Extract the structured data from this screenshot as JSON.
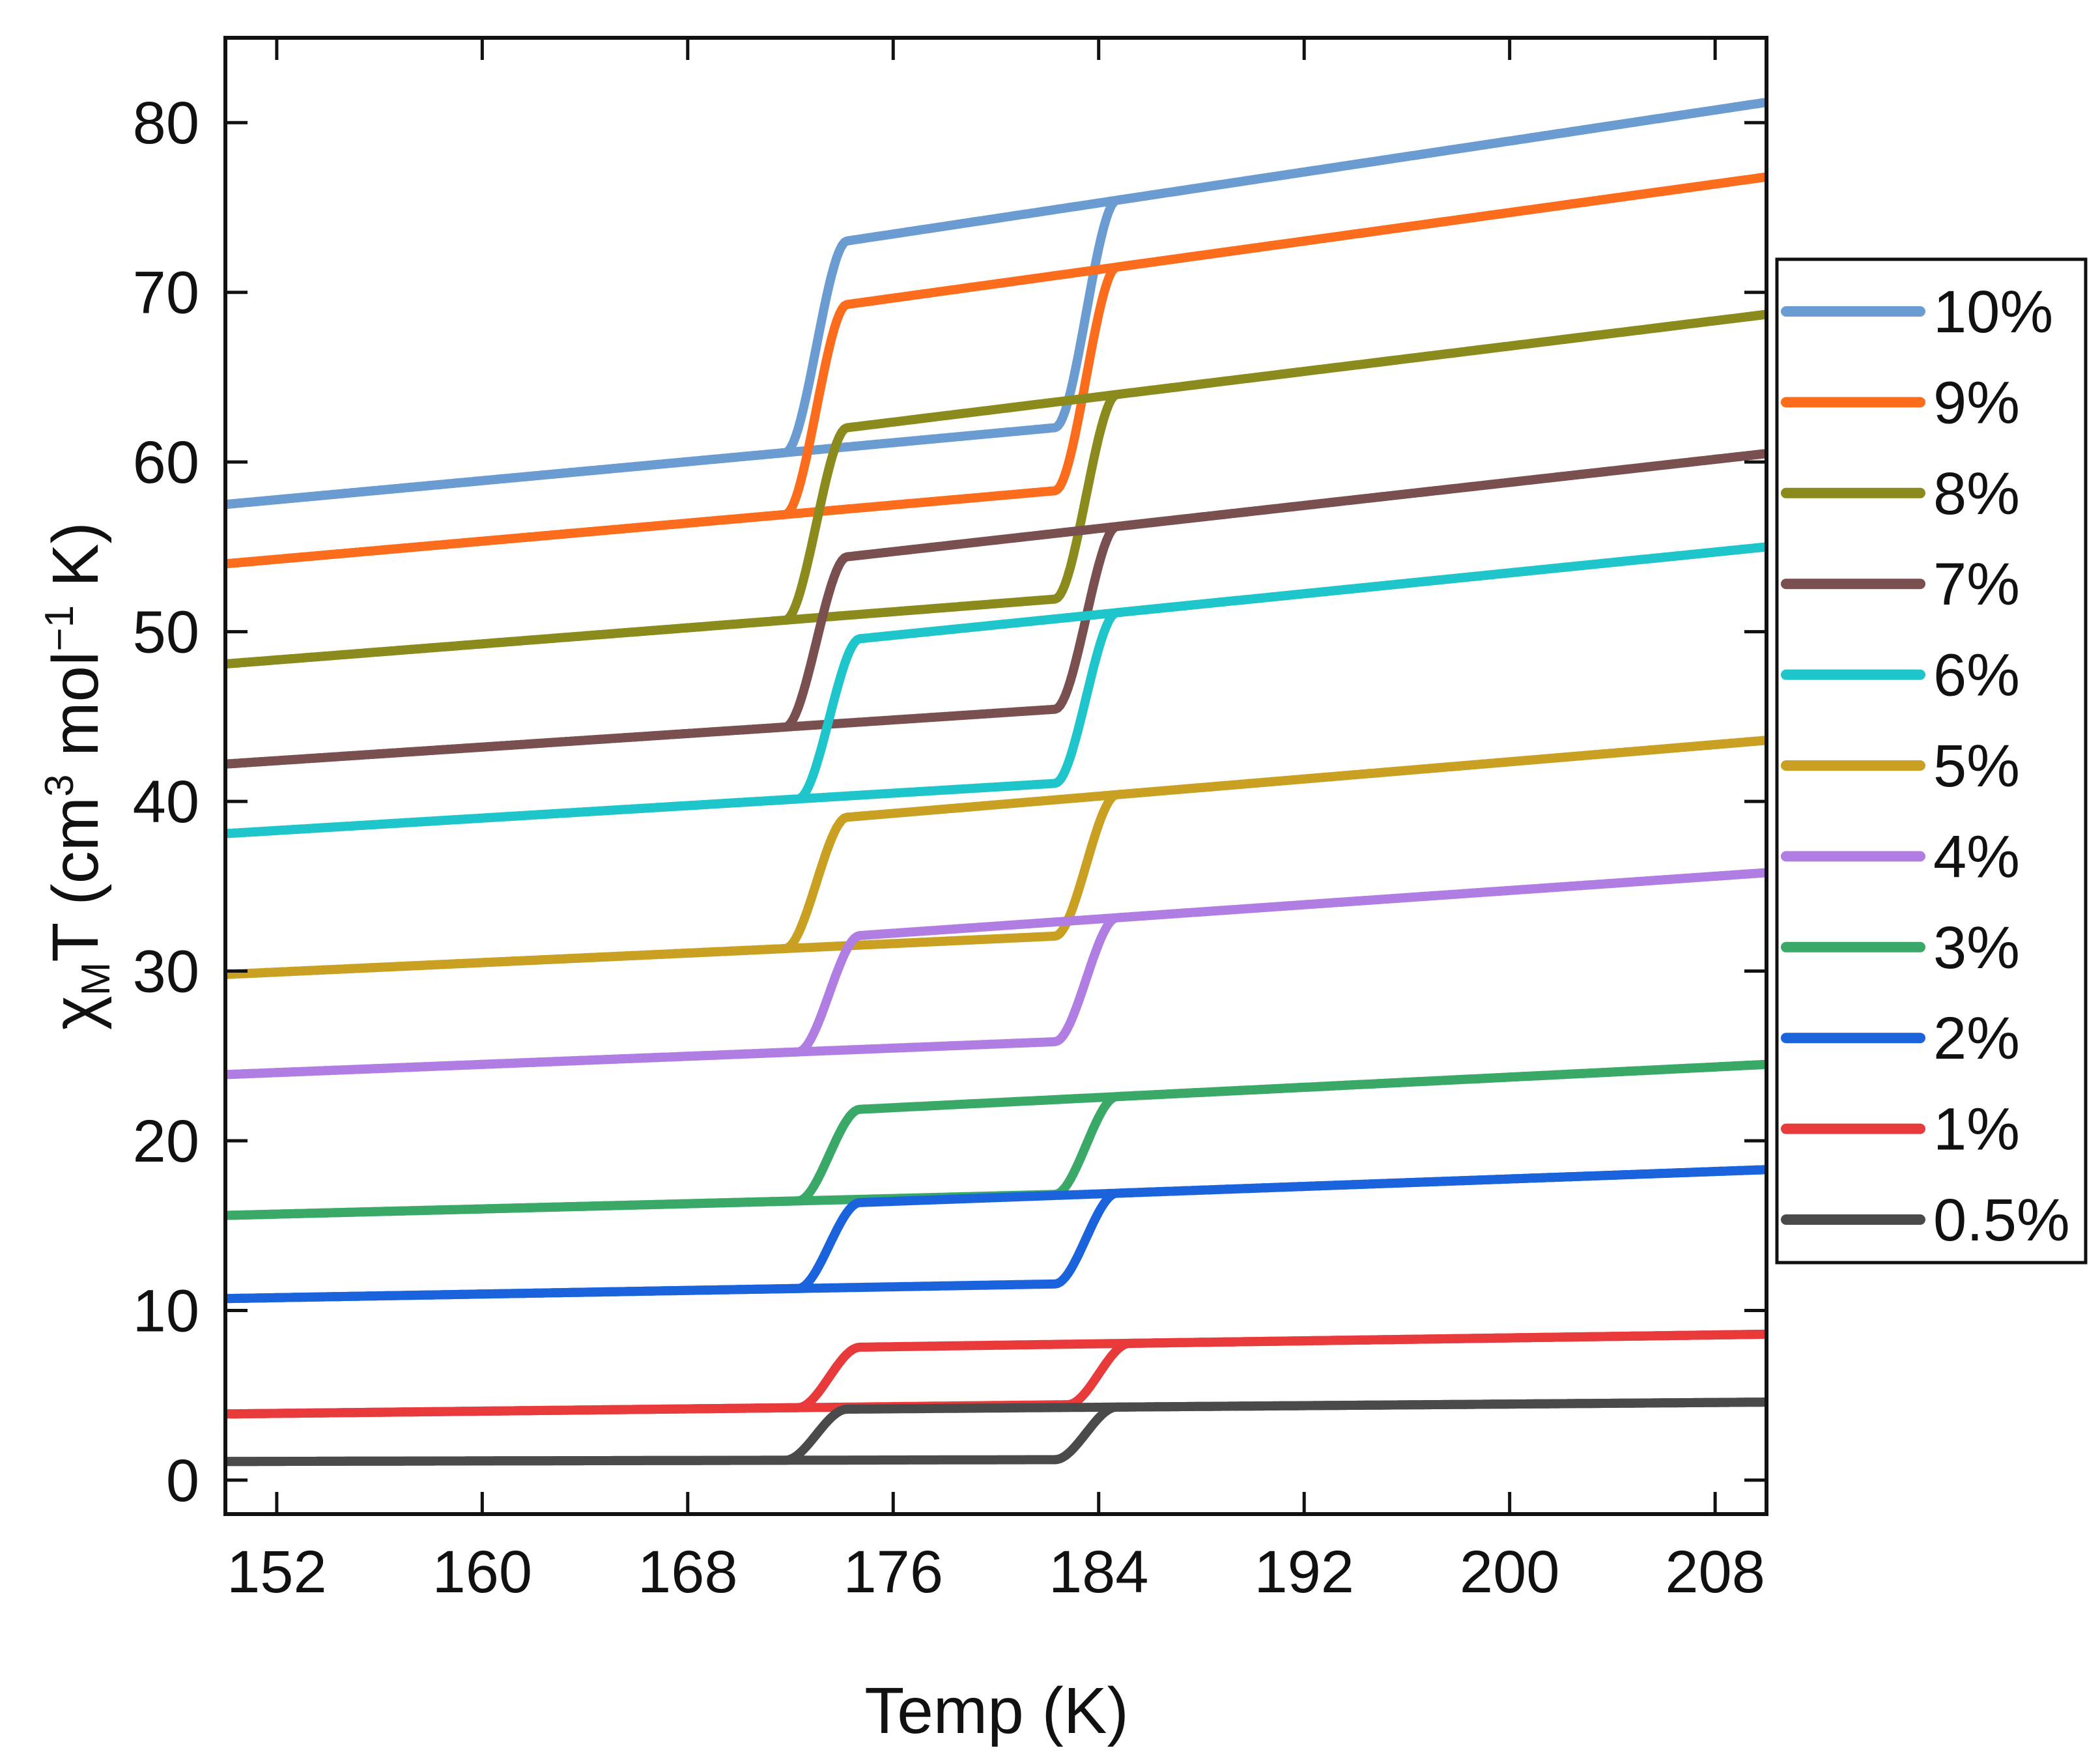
{
  "chart_data": {
    "type": "line",
    "title": "",
    "xlabel": "Temp (K)",
    "ylabel": {
      "chi": "χ",
      "sub": "M",
      "mid": "T (cm",
      "sup1": "3",
      "mid2": " mol",
      "sup2": "−1",
      "end": " K)"
    },
    "xlim": [
      150,
      210
    ],
    "ylim": [
      -2,
      85
    ],
    "xticks": [
      152,
      160,
      168,
      176,
      184,
      192,
      200,
      208
    ],
    "yticks": [
      0,
      10,
      20,
      30,
      40,
      50,
      60,
      70,
      80
    ],
    "legend_position": "right",
    "series": [
      {
        "name": "10%",
        "color": "#6a9bd1",
        "low": [
          57.5,
          65.9
        ],
        "high": [
          67.5,
          81.2
        ],
        "x_heat": 183.5,
        "x_cool": 173.0
      },
      {
        "name": "9%",
        "color": "#fb6d1d",
        "low": [
          54.0,
          62.0
        ],
        "high": [
          64.2,
          76.8
        ],
        "x_heat": 183.5,
        "x_cool": 173.0
      },
      {
        "name": "8%",
        "color": "#8b8a1c",
        "low": [
          48.1,
          55.2
        ],
        "high": [
          57.5,
          68.7
        ],
        "x_heat": 183.5,
        "x_cool": 173.0
      },
      {
        "name": "7%",
        "color": "#7a4f4f",
        "low": [
          42.2,
          48.2
        ],
        "high": [
          50.3,
          60.5
        ],
        "x_heat": 183.5,
        "x_cool": 173.0
      },
      {
        "name": "6%",
        "color": "#1ec6cc",
        "low": [
          38.1,
          43.6
        ],
        "high": [
          45.8,
          55.0
        ],
        "x_heat": 183.5,
        "x_cool": 173.5
      },
      {
        "name": "5%",
        "color": "#c9a021",
        "low": [
          29.8,
          34.0
        ],
        "high": [
          36.0,
          43.6
        ],
        "x_heat": 183.5,
        "x_cool": 173.0
      },
      {
        "name": "4%",
        "color": "#b07ee3",
        "low": [
          23.9,
          27.5
        ],
        "high": [
          29.5,
          35.8
        ],
        "x_heat": 183.5,
        "x_cool": 173.5
      },
      {
        "name": "3%",
        "color": "#3aa867",
        "low": [
          15.6,
          17.9
        ],
        "high": [
          20.0,
          24.5
        ],
        "x_heat": 183.5,
        "x_cool": 173.5
      },
      {
        "name": "2%",
        "color": "#1b63dc",
        "low": [
          10.7,
          12.3
        ],
        "high": [
          15.0,
          18.3
        ],
        "x_heat": 183.5,
        "x_cool": 173.5
      },
      {
        "name": "1%",
        "color": "#e8393b",
        "low": [
          3.9,
          4.9
        ],
        "high": [
          7.3,
          8.6
        ],
        "x_heat": 184.0,
        "x_cool": 173.5
      },
      {
        "name": "0.5%",
        "color": "#4a4a4a",
        "low": [
          1.1,
          1.3
        ],
        "high": [
          3.9,
          4.6
        ],
        "x_heat": 183.5,
        "x_cool": 173.0
      }
    ]
  }
}
